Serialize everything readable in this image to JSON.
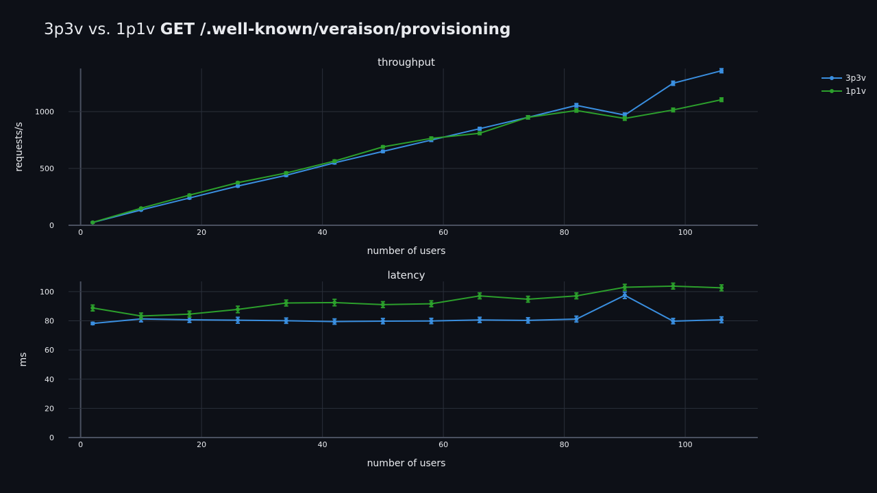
{
  "title_prefix": "3p3v vs. 1p1v ",
  "title_bold": "GET /.well-known/veraison/provisioning",
  "legend": [
    {
      "name": "3p3v",
      "color": "#3a8fe0"
    },
    {
      "name": "1p1v",
      "color": "#2ca02c"
    }
  ],
  "chart_data": [
    {
      "type": "line",
      "title": "throughput",
      "xlabel": "number of users",
      "ylabel": "requests/s",
      "xlim": [
        -2,
        112
      ],
      "ylim": [
        0,
        1380
      ],
      "xticks": [
        0,
        20,
        40,
        60,
        80,
        100
      ],
      "yticks": [
        0,
        500,
        1000
      ],
      "grid": true,
      "legend_position": "top-right",
      "series": [
        {
          "name": "3p3v",
          "color": "#3a8fe0",
          "x": [
            2,
            10,
            18,
            26,
            34,
            42,
            50,
            58,
            66,
            74,
            82,
            90,
            98,
            106
          ],
          "y": [
            25,
            135,
            240,
            345,
            440,
            550,
            650,
            750,
            850,
            950,
            1055,
            970,
            1250,
            1360
          ],
          "error": [
            5,
            6,
            8,
            8,
            10,
            10,
            10,
            12,
            12,
            14,
            16,
            18,
            18,
            18
          ]
        },
        {
          "name": "1p1v",
          "color": "#2ca02c",
          "x": [
            2,
            10,
            18,
            26,
            34,
            42,
            50,
            58,
            66,
            74,
            82,
            90,
            98,
            106
          ],
          "y": [
            25,
            150,
            265,
            375,
            460,
            565,
            690,
            765,
            810,
            950,
            1010,
            940,
            1015,
            1105
          ],
          "error": [
            5,
            6,
            8,
            8,
            10,
            10,
            10,
            12,
            12,
            14,
            14,
            16,
            16,
            16
          ]
        }
      ]
    },
    {
      "type": "line",
      "title": "latency",
      "xlabel": "number of users",
      "ylabel": "ms",
      "xlim": [
        -2,
        112
      ],
      "ylim": [
        0,
        107
      ],
      "xticks": [
        0,
        20,
        40,
        60,
        80,
        100
      ],
      "yticks": [
        0,
        20,
        40,
        60,
        80,
        100
      ],
      "grid": true,
      "series": [
        {
          "name": "3p3v",
          "color": "#3a8fe0",
          "x": [
            2,
            10,
            18,
            26,
            34,
            42,
            50,
            58,
            66,
            74,
            82,
            90,
            98,
            106
          ],
          "y": [
            78.2,
            81.3,
            80.7,
            80.4,
            80.1,
            79.5,
            79.8,
            79.9,
            80.6,
            80.3,
            81.2,
            97.5,
            79.8,
            80.7
          ],
          "error": [
            0.8,
            2.0,
            1.8,
            2.0,
            1.8,
            1.8,
            1.8,
            1.8,
            1.8,
            1.8,
            2.0,
            2.2,
            1.8,
            2.0
          ]
        },
        {
          "name": "1p1v",
          "color": "#2ca02c",
          "x": [
            2,
            10,
            18,
            26,
            34,
            42,
            50,
            58,
            66,
            74,
            82,
            90,
            98,
            106
          ],
          "y": [
            88.8,
            83.3,
            84.6,
            87.8,
            92.2,
            92.5,
            91.1,
            91.7,
            97.1,
            94.8,
            97.1,
            103.0,
            103.8,
            102.6
          ],
          "error": [
            2.0,
            2.0,
            2.0,
            2.2,
            2.0,
            2.2,
            2.0,
            2.0,
            2.0,
            2.0,
            2.0,
            2.0,
            2.0,
            2.0
          ]
        }
      ]
    }
  ]
}
